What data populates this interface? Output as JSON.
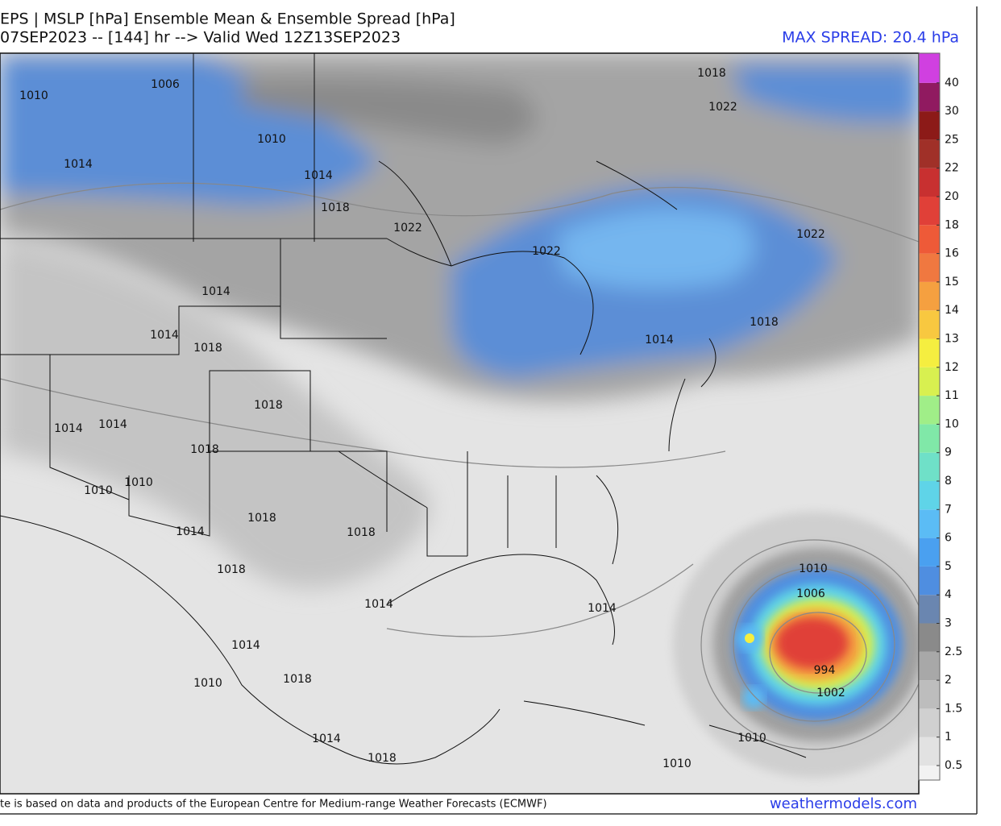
{
  "header": {
    "title_line1": "EPS | MSLP [hPa] Ensemble Mean & Ensemble Spread [hPa]",
    "title_line2": "07SEP2023 -- [144] hr --> Valid Wed 12Z13SEP2023",
    "max_spread": "MAX SPREAD: 20.4 hPa"
  },
  "colorbar": {
    "levels": [
      0.5,
      1,
      1.5,
      2,
      2.5,
      3,
      4,
      5,
      6,
      7,
      8,
      9,
      10,
      11,
      12,
      13,
      14,
      15,
      16,
      18,
      20,
      22,
      25,
      30,
      40
    ],
    "colors": [
      "#f2f2f2",
      "#e2e2e2",
      "#d0d0d0",
      "#bdbdbd",
      "#a8a8a8",
      "#8a8a8a",
      "#6a86b0",
      "#4f8ee0",
      "#4aa0f0",
      "#5bbcf5",
      "#5fd4e8",
      "#6fe0c8",
      "#80e8a8",
      "#a0ee88",
      "#d8f050",
      "#f5ee40",
      "#f8c840",
      "#f5a040",
      "#f07840",
      "#ee5a38",
      "#e04038",
      "#c83030",
      "#a03028",
      "#8c1a18",
      "#901a60",
      "#d040e0"
    ]
  },
  "map": {
    "isobar_labels": [
      "1010",
      "1006",
      "1010",
      "1014",
      "1014",
      "1018",
      "1022",
      "1018",
      "1022",
      "1022",
      "1022",
      "1014",
      "1014",
      "1018",
      "1018",
      "1014",
      "1018",
      "1014",
      "1014",
      "1018",
      "1010",
      "1010",
      "1018",
      "1014",
      "1018",
      "1018",
      "1014",
      "1014",
      "1010",
      "1006",
      "994",
      "1002",
      "1014",
      "1010",
      "1018",
      "1014",
      "1018",
      "1010",
      "1010"
    ]
  },
  "footer": {
    "credit": "te is based on data and products of the European Centre for Medium-range Weather Forecasts (ECMWF)",
    "site": "weathermodels.com"
  }
}
